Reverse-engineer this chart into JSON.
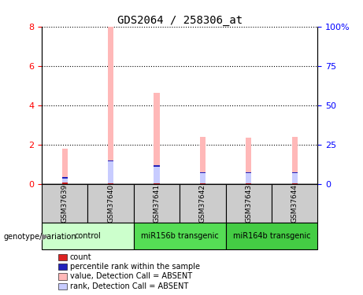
{
  "title": "GDS2064 / 258306_at",
  "samples": [
    "GSM37639",
    "GSM37640",
    "GSM37641",
    "GSM37642",
    "GSM37643",
    "GSM37644"
  ],
  "groups": [
    {
      "label": "control",
      "indices": [
        0,
        1
      ],
      "color": "#ccffcc"
    },
    {
      "label": "miR156b transgenic",
      "indices": [
        2,
        3
      ],
      "color": "#55dd55"
    },
    {
      "label": "miR164b transgenic",
      "indices": [
        4,
        5
      ],
      "color": "#44cc44"
    }
  ],
  "value_absent": [
    1.8,
    8.0,
    4.65,
    2.4,
    2.35,
    2.4
  ],
  "rank_absent": [
    0.35,
    1.2,
    0.95,
    0.6,
    0.6,
    0.6
  ],
  "count_red": [
    0.08,
    0.05,
    0.05,
    0.05,
    0.05,
    0.05
  ],
  "percentile_blue_top": [
    0.38,
    1.23,
    0.98,
    0.63,
    0.63,
    0.63
  ],
  "percentile_blue_height": [
    0.07,
    0.07,
    0.07,
    0.07,
    0.07,
    0.07
  ],
  "ylim_left": [
    0,
    8
  ],
  "ylim_right": [
    0,
    100
  ],
  "yticks_left": [
    0,
    2,
    4,
    6,
    8
  ],
  "yticks_right": [
    0,
    25,
    50,
    75,
    100
  ],
  "ytick_labels_right": [
    "0",
    "25",
    "50",
    "75",
    "100%"
  ],
  "bar_width": 0.12,
  "pink_color": "#ffb8b8",
  "lavender_color": "#c8ccff",
  "red_color": "#dd2222",
  "blue_color": "#2222bb",
  "sample_box_color": "#cccccc",
  "sample_box_border": "#888888"
}
